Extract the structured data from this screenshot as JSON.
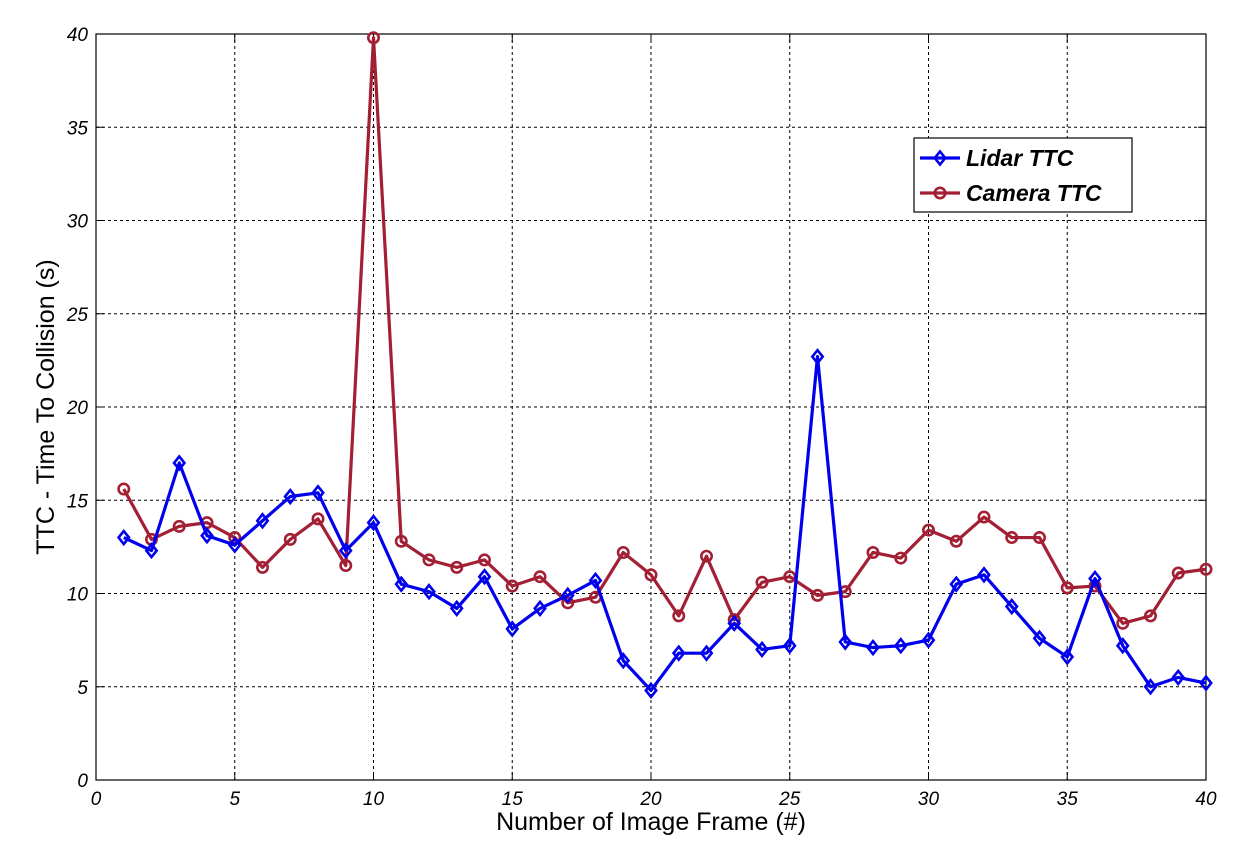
{
  "chart_data": {
    "type": "line",
    "title": "",
    "xlabel": "Number of Image Frame (#)",
    "ylabel": "TTC - Time To Collision (s)",
    "xlim": [
      0,
      40
    ],
    "ylim": [
      0,
      40
    ],
    "xticks": [
      "0",
      "5",
      "10",
      "15",
      "20",
      "25",
      "30",
      "35",
      "40"
    ],
    "yticks": [
      "0",
      "5",
      "10",
      "15",
      "20",
      "25",
      "30",
      "35",
      "40"
    ],
    "grid": true,
    "legend_position": "top-right",
    "x": [
      1,
      2,
      3,
      4,
      5,
      6,
      7,
      8,
      9,
      10,
      11,
      12,
      13,
      14,
      15,
      16,
      17,
      18,
      19,
      20,
      21,
      22,
      23,
      24,
      25,
      26,
      27,
      28,
      29,
      30,
      31,
      32,
      33,
      34,
      35,
      36,
      37,
      38,
      39,
      40
    ],
    "series": [
      {
        "name": "Lidar TTC",
        "color": "#0000ee",
        "marker": "diamond",
        "values": [
          13.0,
          12.3,
          17.0,
          13.1,
          12.6,
          13.9,
          15.2,
          15.4,
          12.3,
          13.8,
          10.5,
          10.1,
          9.2,
          10.9,
          8.1,
          9.2,
          9.9,
          10.7,
          6.4,
          4.8,
          6.8,
          6.8,
          8.4,
          7.0,
          7.2,
          22.7,
          7.4,
          7.1,
          7.2,
          7.5,
          10.5,
          11.0,
          9.3,
          7.6,
          6.6,
          10.8,
          7.2,
          5.0,
          5.5,
          5.2
        ]
      },
      {
        "name": "Camera TTC",
        "color": "#a31f34",
        "marker": "circle",
        "values": [
          15.6,
          12.9,
          13.6,
          13.8,
          13.0,
          11.4,
          12.9,
          14.0,
          11.5,
          39.8,
          12.8,
          11.8,
          11.4,
          11.8,
          10.4,
          10.9,
          9.5,
          9.8,
          12.2,
          11.0,
          8.8,
          12.0,
          8.6,
          10.6,
          10.9,
          9.9,
          10.1,
          12.2,
          11.9,
          13.4,
          12.8,
          14.1,
          13.0,
          13.0,
          10.3,
          10.4,
          8.4,
          8.8,
          11.1,
          11.3
        ]
      }
    ]
  }
}
